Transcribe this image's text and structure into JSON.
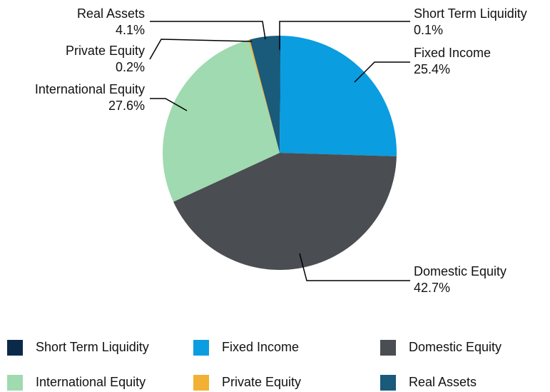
{
  "chart_data": {
    "type": "pie",
    "categories": [
      "Short Term Liquidity",
      "Fixed Income",
      "Domestic Equity",
      "International Equity",
      "Private Equity",
      "Real Assets"
    ],
    "values": [
      0.1,
      25.4,
      42.7,
      27.6,
      0.2,
      4.1
    ],
    "value_labels": [
      "0.1%",
      "25.4%",
      "42.7%",
      "27.6%",
      "0.2%",
      "4.1%"
    ],
    "colors": [
      "#0b2a4a",
      "#0a9de0",
      "#4a4d52",
      "#a0dab0",
      "#f2b134",
      "#1a5a7a"
    ],
    "legend": "bottom"
  }
}
